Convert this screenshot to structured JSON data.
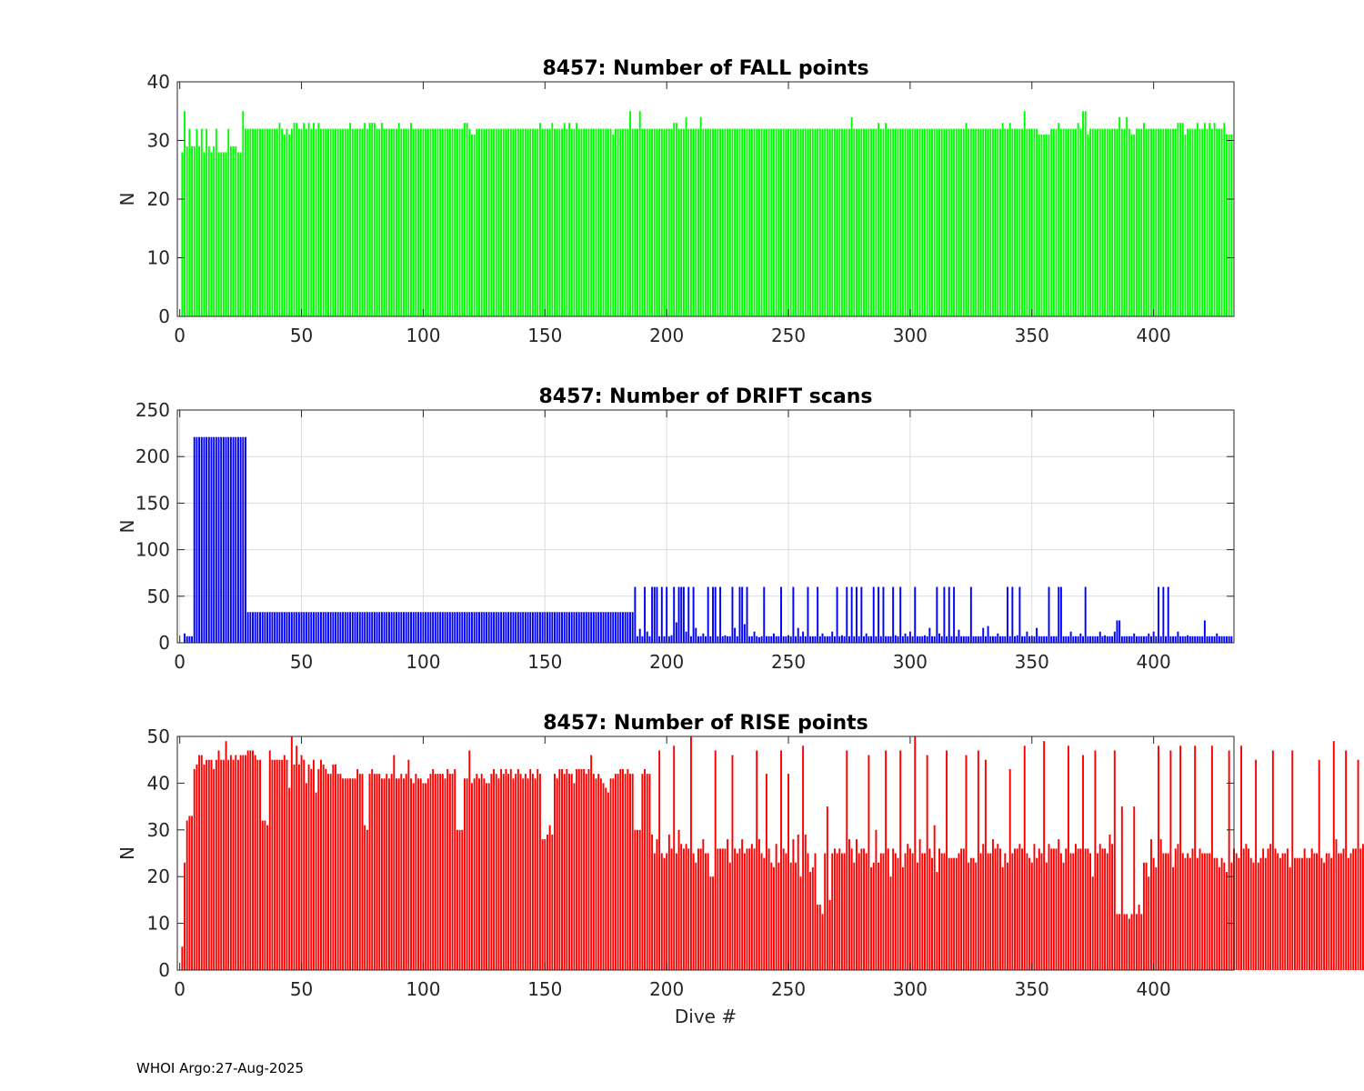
{
  "footer": "WHOI Argo:27-Aug-2025",
  "chart_data": [
    {
      "type": "bar",
      "title": "8457: Number of FALL points",
      "ylabel": "N",
      "xlabel": "",
      "color": "#00ff00",
      "xlim": [
        -1,
        433
      ],
      "ylim": [
        0,
        40
      ],
      "xticks": [
        0,
        50,
        100,
        150,
        200,
        250,
        300,
        350,
        400
      ],
      "yticks": [
        0,
        10,
        20,
        30,
        40
      ],
      "grid": false,
      "segments": [
        {
          "from": 1,
          "to": 1,
          "value": 28
        },
        {
          "from": 2,
          "to": 2,
          "value": 35
        },
        {
          "from": 3,
          "to": 10,
          "value": 29
        },
        {
          "from": 11,
          "to": 26,
          "value": 29
        },
        {
          "from": 27,
          "to": 432,
          "value": 32
        }
      ],
      "overrides": [
        [
          1,
          28
        ],
        [
          2,
          35
        ],
        [
          3,
          29
        ],
        [
          4,
          32
        ],
        [
          5,
          29
        ],
        [
          6,
          29
        ],
        [
          7,
          32
        ],
        [
          8,
          29
        ],
        [
          9,
          32
        ],
        [
          10,
          28
        ],
        [
          11,
          32
        ],
        [
          12,
          29
        ],
        [
          13,
          28
        ],
        [
          14,
          29
        ],
        [
          15,
          32
        ],
        [
          16,
          28
        ],
        [
          17,
          28
        ],
        [
          18,
          28
        ],
        [
          19,
          28
        ],
        [
          20,
          32
        ],
        [
          21,
          29
        ],
        [
          22,
          29
        ],
        [
          23,
          29
        ],
        [
          24,
          28
        ],
        [
          25,
          28
        ],
        [
          26,
          35
        ],
        [
          41,
          33
        ],
        [
          43,
          31
        ],
        [
          45,
          31
        ],
        [
          47,
          33
        ],
        [
          48,
          33
        ],
        [
          51,
          33
        ],
        [
          53,
          33
        ],
        [
          55,
          33
        ],
        [
          57,
          33
        ],
        [
          70,
          33
        ],
        [
          76,
          33
        ],
        [
          78,
          33
        ],
        [
          79,
          33
        ],
        [
          80,
          33
        ],
        [
          83,
          33
        ],
        [
          90,
          33
        ],
        [
          95,
          33
        ],
        [
          117,
          33
        ],
        [
          118,
          33
        ],
        [
          120,
          31
        ],
        [
          121,
          31
        ],
        [
          148,
          33
        ],
        [
          153,
          33
        ],
        [
          158,
          33
        ],
        [
          160,
          33
        ],
        [
          163,
          33
        ],
        [
          178,
          31
        ],
        [
          185,
          35
        ],
        [
          189,
          35
        ],
        [
          203,
          33
        ],
        [
          204,
          33
        ],
        [
          208,
          34
        ],
        [
          214,
          34
        ],
        [
          276,
          34
        ],
        [
          287,
          33
        ],
        [
          290,
          33
        ],
        [
          323,
          33
        ],
        [
          338,
          33
        ],
        [
          341,
          33
        ],
        [
          347,
          35
        ],
        [
          353,
          31
        ],
        [
          354,
          31
        ],
        [
          355,
          31
        ],
        [
          356,
          31
        ],
        [
          357,
          31
        ],
        [
          361,
          33
        ],
        [
          369,
          33
        ],
        [
          371,
          35
        ],
        [
          372,
          35
        ],
        [
          373,
          31
        ],
        [
          386,
          34
        ],
        [
          389,
          34
        ],
        [
          391,
          31
        ],
        [
          392,
          31
        ],
        [
          396,
          33
        ],
        [
          410,
          33
        ],
        [
          411,
          33
        ],
        [
          412,
          33
        ],
        [
          413,
          31
        ],
        [
          418,
          33
        ],
        [
          421,
          33
        ],
        [
          423,
          33
        ],
        [
          425,
          33
        ],
        [
          429,
          33
        ],
        [
          430,
          31
        ],
        [
          431,
          31
        ],
        [
          432,
          31
        ]
      ]
    },
    {
      "type": "bar",
      "title": "8457: Number of DRIFT scans",
      "ylabel": "N",
      "xlabel": "",
      "color": "#0000ff",
      "xlim": [
        -1,
        433
      ],
      "ylim": [
        0,
        250
      ],
      "xticks": [
        0,
        50,
        100,
        150,
        200,
        250,
        300,
        350,
        400
      ],
      "yticks": [
        0,
        50,
        100,
        150,
        200,
        250
      ],
      "grid": true,
      "segments": [
        {
          "from": 1,
          "to": 1,
          "value": 0
        },
        {
          "from": 2,
          "to": 2,
          "value": 10
        },
        {
          "from": 3,
          "to": 5,
          "value": 7
        },
        {
          "from": 6,
          "to": 27,
          "value": 221
        },
        {
          "from": 28,
          "to": 186,
          "value": 33
        },
        {
          "from": 187,
          "to": 432,
          "value": 7
        }
      ],
      "overrides": [
        [
          187,
          60
        ],
        [
          189,
          15
        ],
        [
          191,
          60
        ],
        [
          194,
          60
        ],
        [
          195,
          60
        ],
        [
          196,
          60
        ],
        [
          198,
          60
        ],
        [
          200,
          60
        ],
        [
          203,
          60
        ],
        [
          205,
          60
        ],
        [
          206,
          60
        ],
        [
          207,
          60
        ],
        [
          209,
          60
        ],
        [
          211,
          60
        ],
        [
          217,
          60
        ],
        [
          219,
          60
        ],
        [
          220,
          60
        ],
        [
          222,
          60
        ],
        [
          227,
          60
        ],
        [
          230,
          60
        ],
        [
          231,
          60
        ],
        [
          233,
          60
        ],
        [
          240,
          60
        ],
        [
          247,
          60
        ],
        [
          252,
          60
        ],
        [
          258,
          60
        ],
        [
          262,
          60
        ],
        [
          270,
          60
        ],
        [
          274,
          60
        ],
        [
          276,
          60
        ],
        [
          278,
          60
        ],
        [
          280,
          60
        ],
        [
          285,
          60
        ],
        [
          287,
          60
        ],
        [
          289,
          60
        ],
        [
          293,
          60
        ],
        [
          296,
          60
        ],
        [
          302,
          60
        ],
        [
          311,
          60
        ],
        [
          314,
          60
        ],
        [
          316,
          60
        ],
        [
          318,
          60
        ],
        [
          325,
          60
        ],
        [
          340,
          60
        ],
        [
          342,
          60
        ],
        [
          345,
          60
        ],
        [
          357,
          60
        ],
        [
          361,
          60
        ],
        [
          362,
          60
        ],
        [
          372,
          60
        ],
        [
          385,
          24
        ],
        [
          386,
          24
        ],
        [
          402,
          60
        ],
        [
          404,
          60
        ],
        [
          406,
          60
        ],
        [
          421,
          24
        ],
        [
          192,
          12
        ],
        [
          202,
          8
        ],
        [
          204,
          22
        ],
        [
          208,
          12
        ],
        [
          212,
          16
        ],
        [
          215,
          10
        ],
        [
          224,
          8
        ],
        [
          228,
          16
        ],
        [
          232,
          20
        ],
        [
          236,
          12
        ],
        [
          238,
          6
        ],
        [
          244,
          10
        ],
        [
          250,
          8
        ],
        [
          254,
          16
        ],
        [
          256,
          12
        ],
        [
          264,
          10
        ],
        [
          268,
          12
        ],
        [
          272,
          8
        ],
        [
          282,
          10
        ],
        [
          294,
          8
        ],
        [
          298,
          10
        ],
        [
          300,
          12
        ],
        [
          306,
          8
        ],
        [
          308,
          16
        ],
        [
          312,
          10
        ],
        [
          320,
          14
        ],
        [
          330,
          16
        ],
        [
          332,
          18
        ],
        [
          336,
          10
        ],
        [
          344,
          8
        ],
        [
          348,
          12
        ],
        [
          352,
          16
        ],
        [
          366,
          12
        ],
        [
          370,
          10
        ],
        [
          378,
          12
        ],
        [
          380,
          8
        ],
        [
          384,
          12
        ],
        [
          392,
          10
        ],
        [
          398,
          10
        ],
        [
          400,
          12
        ],
        [
          410,
          12
        ],
        [
          414,
          8
        ],
        [
          426,
          10
        ]
      ]
    },
    {
      "type": "bar",
      "title": "8457: Number of RISE points",
      "ylabel": "N",
      "xlabel": "Dive #",
      "color": "#ff0000",
      "xlim": [
        -1,
        433
      ],
      "ylim": [
        0,
        50
      ],
      "xticks": [
        0,
        50,
        100,
        150,
        200,
        250,
        300,
        350,
        400
      ],
      "yticks": [
        0,
        10,
        20,
        30,
        40,
        50
      ],
      "grid": false,
      "values": [
        5,
        23,
        32,
        33,
        33,
        43,
        44,
        46,
        46,
        44,
        45,
        45,
        45,
        43,
        45,
        47,
        45,
        45,
        49,
        45,
        46,
        45,
        46,
        45,
        46,
        46,
        46,
        47,
        47,
        47,
        46,
        45,
        45,
        32,
        32,
        31,
        47,
        45,
        45,
        45,
        45,
        45,
        46,
        45,
        39,
        50,
        44,
        48,
        44,
        46,
        45,
        40,
        44,
        43,
        45,
        38,
        43,
        45,
        44,
        43,
        42,
        42,
        44,
        44,
        42,
        42,
        41,
        41,
        41,
        41,
        41,
        41,
        43,
        42,
        42,
        31,
        30,
        42,
        43,
        42,
        42,
        42,
        41,
        41,
        42,
        41,
        42,
        46,
        41,
        41,
        42,
        41,
        42,
        45,
        41,
        40,
        42,
        41,
        41,
        40,
        40,
        41,
        42,
        43,
        42,
        42,
        42,
        42,
        41,
        43,
        42,
        42,
        43,
        30,
        30,
        30,
        41,
        41,
        47,
        40,
        41,
        42,
        41,
        42,
        41,
        40,
        40,
        42,
        43,
        42,
        41,
        43,
        42,
        43,
        42,
        43,
        41,
        42,
        43,
        42,
        41,
        42,
        41,
        43,
        42,
        41,
        43,
        42,
        28,
        28,
        29,
        31,
        29,
        42,
        41,
        43,
        43,
        42,
        43,
        42,
        42,
        40,
        43,
        43,
        43,
        43,
        42,
        43,
        46,
        42,
        41,
        42,
        41,
        40,
        39,
        38,
        41,
        41,
        42,
        42,
        43,
        43,
        42,
        43,
        42,
        42,
        30,
        30,
        30,
        42,
        43,
        42,
        42,
        29,
        25,
        28,
        47,
        25,
        24,
        25,
        29,
        26,
        48,
        25,
        30,
        27,
        26,
        27,
        26,
        50,
        25,
        23,
        26,
        26,
        28,
        25,
        25,
        20,
        20,
        47,
        26,
        26,
        26,
        26,
        28,
        23,
        46,
        26,
        25,
        26,
        28,
        25,
        26,
        26,
        27,
        26,
        47,
        28,
        25,
        24,
        42,
        26,
        23,
        22,
        27,
        23,
        47,
        26,
        25,
        42,
        23,
        28,
        23,
        29,
        20,
        48,
        29,
        25,
        21,
        22,
        25,
        14,
        14,
        12,
        25,
        35,
        15,
        25,
        26,
        25,
        26,
        25,
        25,
        47,
        28,
        26,
        23,
        28,
        25,
        26,
        26,
        25,
        46,
        22,
        23,
        30,
        23,
        25,
        25,
        47,
        26,
        20,
        26,
        25,
        24,
        47,
        22,
        25,
        27,
        26,
        25,
        50,
        23,
        28,
        25,
        25,
        46,
        26,
        24,
        31,
        21,
        26,
        25,
        25,
        47,
        24,
        24,
        24,
        24,
        25,
        26,
        26,
        46,
        23,
        24,
        24,
        23,
        47,
        25,
        27,
        45,
        25,
        25,
        28,
        26,
        27,
        26,
        22,
        25,
        23,
        43,
        25,
        26,
        26,
        27,
        26,
        48,
        25,
        24,
        23,
        27,
        24,
        26,
        25,
        49,
        23,
        27,
        26,
        26,
        26,
        28,
        25,
        23,
        26,
        48,
        25,
        25,
        27,
        26,
        26,
        46,
        26,
        26,
        25,
        20,
        47,
        25,
        27,
        26,
        26,
        25,
        29,
        27,
        47,
        12,
        12,
        35,
        12,
        12,
        11,
        12,
        35,
        12,
        14,
        12,
        23,
        23,
        20,
        28,
        24,
        22,
        48,
        28,
        25,
        25,
        25,
        47,
        22,
        26,
        27,
        48,
        25,
        24,
        25,
        24,
        26,
        48,
        24,
        26,
        25,
        25,
        25,
        25,
        48,
        24,
        24,
        22,
        24,
        23,
        21,
        47,
        23,
        26,
        25,
        24,
        48,
        26,
        27,
        26,
        24,
        23,
        45,
        23,
        24,
        26,
        24,
        26,
        27,
        47,
        26,
        25,
        24,
        25,
        25,
        26,
        22,
        47,
        24,
        24,
        24,
        24,
        26,
        24,
        24,
        26,
        25,
        25,
        45,
        24,
        23,
        25,
        25,
        24,
        49,
        28,
        25,
        25,
        26,
        47,
        24,
        25,
        26,
        26,
        45,
        26,
        27,
        25
      ]
    }
  ]
}
